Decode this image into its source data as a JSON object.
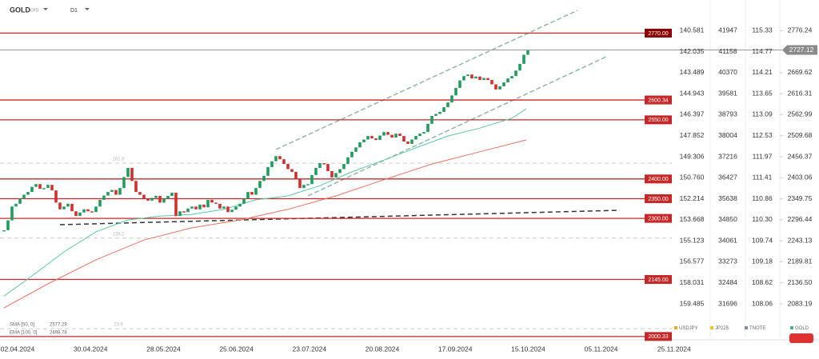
{
  "header": {
    "symbol": "GOLD",
    "kind": "CFD",
    "timeframe": "D1"
  },
  "chart_data": {
    "type": "candlestick",
    "series": [
      {
        "name": "GOLD",
        "color_up": "#1f9d5c",
        "color_down": "#d32f2f",
        "close": [
          2270,
          2295,
          2330,
          2337,
          2350,
          2360,
          2367,
          2380,
          2387,
          2375,
          2377,
          2385,
          2371,
          2340,
          2323,
          2330,
          2337,
          2318,
          2306,
          2315,
          2323,
          2318,
          2316,
          2330,
          2347,
          2358,
          2367,
          2372,
          2360,
          2377,
          2405,
          2428,
          2395,
          2367,
          2360,
          2351,
          2345,
          2352,
          2357,
          2340,
          2350,
          2357,
          2365,
          2306,
          2318,
          2316,
          2325,
          2330,
          2323,
          2335,
          2328,
          2347,
          2340,
          2337,
          2325,
          2330,
          2316,
          2322,
          2330,
          2337,
          2350,
          2367,
          2360,
          2377,
          2395,
          2408,
          2430,
          2445,
          2458,
          2450,
          2438,
          2425,
          2418,
          2400,
          2377,
          2385,
          2387,
          2410,
          2428,
          2440,
          2438,
          2420,
          2404,
          2415,
          2425,
          2438,
          2455,
          2469,
          2480,
          2493,
          2500,
          2509,
          2503,
          2499,
          2510,
          2519,
          2512,
          2505,
          2515,
          2509,
          2495,
          2489,
          2500,
          2509,
          2515,
          2519,
          2540,
          2560,
          2565,
          2570,
          2582,
          2594,
          2612,
          2631,
          2650,
          2661,
          2665,
          2655,
          2660,
          2651,
          2656,
          2651,
          2640,
          2627,
          2635,
          2645,
          2655,
          2661,
          2675,
          2692,
          2715,
          2726
        ]
      }
    ],
    "lines": [
      {
        "name": "EMA [100, 0]",
        "last": 2498.78,
        "color": "#f07060",
        "x": [
          0,
          11,
          23,
          35,
          47,
          59,
          71,
          83,
          95,
          107,
          119,
          130.6
        ],
        "values": [
          2073,
          2134,
          2195,
          2245,
          2276,
          2296,
          2323,
          2357,
          2398,
          2438,
          2469,
          2499
        ]
      },
      {
        "name": "SMA [50, 0]",
        "last": 2577.29,
        "color": "#5cc8a8",
        "x": [
          0,
          7,
          15,
          23,
          31,
          39,
          47,
          55,
          63,
          71,
          79,
          87,
          95,
          103,
          111,
          119,
          127,
          130.6
        ],
        "values": [
          2103,
          2154,
          2215,
          2266,
          2296,
          2306,
          2310,
          2323,
          2347,
          2357,
          2383,
          2418,
          2448,
          2479,
          2509,
          2529,
          2554,
          2578
        ]
      }
    ],
    "ylim": [
      1998,
      2854
    ],
    "yticks": [
      2776.24,
      2669.62,
      2616.31,
      2562.99,
      2509.68,
      2456.37,
      2403.06,
      2349.75,
      2296.44,
      2243.13,
      2189.81,
      {
        "value": 2136.5,
        "label": "2136.50"
      },
      2083.19
    ],
    "last_price": 2727.12,
    "levels": [
      {
        "value": 2770,
        "label": "2770.00"
      },
      {
        "value": 2600.34,
        "label": "2600.34"
      },
      {
        "value": 2550,
        "label": "2550.00"
      },
      {
        "value": 2400,
        "label": "2400.00"
      },
      {
        "value": 2350,
        "label": "2350.00"
      },
      {
        "value": 2300,
        "label": "2300.00"
      },
      {
        "value": 2145,
        "label": "2145.00"
      },
      {
        "value": 2000.33,
        "label": "2000.33"
      }
    ],
    "fib_levels": [
      {
        "value": 2440,
        "label": "161.8"
      },
      {
        "value": 2250,
        "label": "138.2"
      },
      {
        "value": 2020,
        "label": "23.6"
      }
    ],
    "xticks": [
      "02.04.2024",
      "30.04.2024",
      "28.05.2024",
      "25.06.2024",
      "23.07.2024",
      "20.08.2024",
      "17.09.2024",
      "15.10.2024",
      "05.11.2024",
      "25.11.2024"
    ],
    "compare_axes": [
      {
        "name": "USDJPY",
        "color": "#f5a623",
        "ticks": [
          140.581,
          142.035,
          143.489,
          144.943,
          146.397,
          147.852,
          149.306,
          {
            "value": 150.76,
            "label": "150.760"
          },
          152.214,
          153.668,
          155.123,
          156.577,
          158.031,
          159.485
        ]
      },
      {
        "name": "JP225",
        "color": "#f5c518",
        "ticks": [
          41947,
          41158,
          40370,
          39581,
          38793,
          38004,
          37216,
          36427,
          35638,
          34850,
          34061,
          33273,
          32484,
          31696
        ]
      },
      {
        "name": "TNOTE",
        "color": "#7a8ba8",
        "ticks": [
          115.33,
          114.77,
          114.21,
          113.65,
          113.09,
          112.53,
          111.97,
          111.41,
          110.86,
          {
            "value": 110.3,
            "label": "110.30"
          },
          109.74,
          109.18,
          108.62,
          108.06
        ]
      }
    ],
    "compare_legend_last": {
      "name": "GOLD",
      "color": "#4caf8f"
    }
  }
}
